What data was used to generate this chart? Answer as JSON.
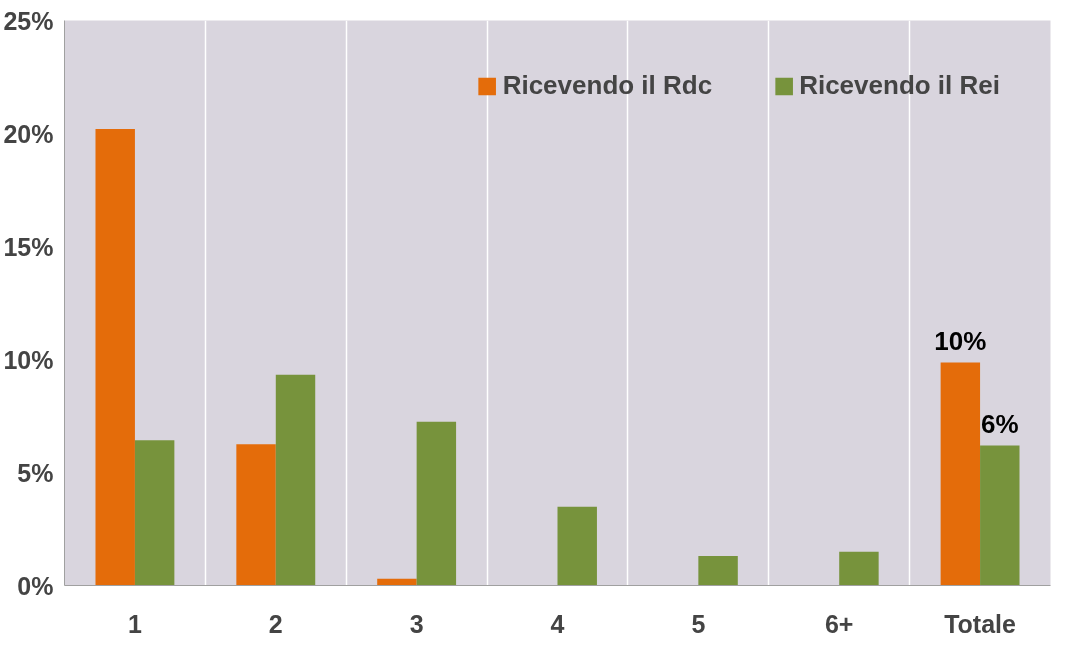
{
  "chart_data": {
    "type": "bar",
    "categories": [
      "1",
      "2",
      "3",
      "4",
      "5",
      "6+",
      "Totale"
    ],
    "series": [
      {
        "name": "Ricevendo il Rdc",
        "color": "#e46c0a",
        "values": [
          20.2,
          6.25,
          0.3,
          0,
          0,
          0,
          9.87
        ],
        "value_labels": [
          null,
          null,
          null,
          null,
          null,
          null,
          "10%"
        ]
      },
      {
        "name": "Ricevendo il Rei",
        "color": "#77933c",
        "values": [
          6.43,
          9.33,
          7.25,
          3.49,
          1.31,
          1.49,
          6.2
        ],
        "value_labels": [
          null,
          null,
          null,
          null,
          null,
          null,
          "6%"
        ]
      }
    ],
    "ylim": [
      0,
      25
    ],
    "yticks": [
      {
        "value": 0,
        "label": "0%"
      },
      {
        "value": 5,
        "label": "5%"
      },
      {
        "value": 10,
        "label": "10%"
      },
      {
        "value": 15,
        "label": "15%"
      },
      {
        "value": 20,
        "label": "20%"
      },
      {
        "value": 25,
        "label": "25%"
      }
    ],
    "grid": "x",
    "legend": "top right"
  }
}
